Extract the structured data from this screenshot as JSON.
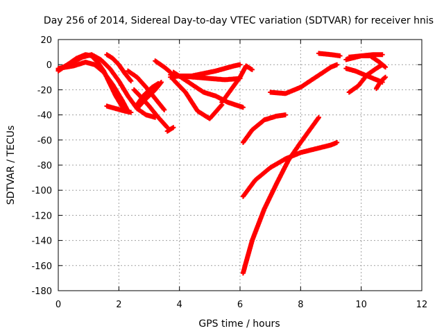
{
  "chart_data": {
    "type": "scatter",
    "title": "Day 256 of 2014, Sidereal Day-to-day VTEC variation (SDTVAR) for receiver hnis",
    "xlabel": "GPS time / hours",
    "ylabel": "SDTVAR / TECUs",
    "xlim": [
      0,
      12
    ],
    "ylim": [
      -180,
      20
    ],
    "xticks": [
      0,
      2,
      4,
      6,
      8,
      10,
      12
    ],
    "yticks": [
      -180,
      -160,
      -140,
      -120,
      -100,
      -80,
      -60,
      -40,
      -20,
      0,
      20
    ],
    "grid": true,
    "marker": "plus",
    "color": "#ff0000",
    "series": [
      {
        "x": [
          0.0,
          0.3,
          0.6,
          0.9,
          1.1,
          1.3,
          1.5,
          1.7,
          1.9,
          2.1,
          2.2
        ],
        "y": [
          -5,
          0,
          5,
          8,
          7,
          2,
          -5,
          -15,
          -25,
          -33,
          -36
        ]
      },
      {
        "x": [
          0.0,
          0.4,
          0.8,
          1.1,
          1.4,
          1.7,
          2.0,
          2.3,
          2.6,
          2.9,
          3.2
        ],
        "y": [
          -4,
          1,
          6,
          8,
          4,
          -3,
          -13,
          -25,
          -35,
          -40,
          -42
        ]
      },
      {
        "x": [
          0.0,
          0.5,
          0.9,
          1.2,
          1.5,
          1.8,
          2.1,
          2.3
        ],
        "y": [
          -3,
          -1,
          2,
          0,
          -6,
          -16,
          -28,
          -37
        ]
      },
      {
        "x": [
          1.6,
          1.8,
          2.0,
          2.2,
          2.4
        ],
        "y": [
          8,
          5,
          0,
          -7,
          -13
        ]
      },
      {
        "x": [
          1.6,
          1.9,
          2.2,
          2.4
        ],
        "y": [
          -33,
          -35,
          -37,
          -38
        ]
      },
      {
        "x": [
          2.3,
          2.6,
          2.9,
          3.2,
          3.5
        ],
        "y": [
          -5,
          -10,
          -18,
          -27,
          -36
        ]
      },
      {
        "x": [
          2.5,
          2.7,
          3.0,
          3.3,
          3.6
        ],
        "y": [
          -20,
          -25,
          -33,
          -42,
          -50
        ]
      },
      {
        "x": [
          2.6,
          2.9,
          3.2,
          3.4
        ],
        "y": [
          -35,
          -27,
          -20,
          -14
        ]
      },
      {
        "x": [
          2.6,
          2.8,
          3.1,
          3.3
        ],
        "y": [
          -32,
          -25,
          -18,
          -15
        ]
      },
      {
        "x": [
          3.6,
          3.8
        ],
        "y": [
          -53,
          -50
        ]
      },
      {
        "x": [
          3.2,
          3.5,
          3.7
        ],
        "y": [
          3,
          -2,
          -6
        ]
      },
      {
        "x": [
          3.7,
          4.0,
          4.4,
          4.8,
          5.2,
          5.5,
          5.8,
          6.0
        ],
        "y": [
          -8,
          -9,
          -9,
          -7,
          -5,
          -3,
          -1,
          0
        ]
      },
      {
        "x": [
          3.7,
          4.0,
          4.5,
          5.0,
          5.5,
          6.0
        ],
        "y": [
          -10,
          -9,
          -10,
          -11,
          -12,
          -11
        ]
      },
      {
        "x": [
          3.8,
          4.2,
          4.6,
          5.0,
          5.4
        ],
        "y": [
          -12,
          -22,
          -37,
          -43,
          -32
        ]
      },
      {
        "x": [
          3.8,
          4.3,
          4.8,
          5.2,
          5.6,
          6.1
        ],
        "y": [
          -6,
          -14,
          -22,
          -25,
          -30,
          -34
        ]
      },
      {
        "x": [
          5.4,
          5.7,
          6.0,
          6.2,
          6.4
        ],
        "y": [
          -30,
          -20,
          -10,
          -1,
          -4
        ]
      },
      {
        "x": [
          6.1,
          6.4,
          6.8,
          7.2,
          7.5
        ],
        "y": [
          -62,
          -52,
          -44,
          -41,
          -40
        ]
      },
      {
        "x": [
          6.1,
          6.5,
          7.0,
          7.5,
          8.0,
          8.5,
          9.0,
          9.2
        ],
        "y": [
          -105,
          -92,
          -82,
          -75,
          -70,
          -67,
          -64,
          -62
        ]
      },
      {
        "x": [
          6.1,
          6.4,
          6.8,
          7.2,
          7.6,
          8.0,
          8.3,
          8.6
        ],
        "y": [
          -166,
          -140,
          -115,
          -95,
          -76,
          -62,
          -52,
          -42
        ]
      },
      {
        "x": [
          7.0,
          7.5,
          8.0,
          8.5,
          9.0,
          9.2
        ],
        "y": [
          -22,
          -23,
          -18,
          -10,
          -2,
          0
        ]
      },
      {
        "x": [
          8.6,
          9.0,
          9.3
        ],
        "y": [
          9,
          8,
          7
        ]
      },
      {
        "x": [
          9.6,
          9.9,
          10.2,
          10.5,
          10.7
        ],
        "y": [
          -22,
          -17,
          -8,
          -3,
          0
        ]
      },
      {
        "x": [
          9.5,
          9.8,
          10.1,
          10.4,
          10.7
        ],
        "y": [
          -3,
          -5,
          -8,
          -11,
          -14
        ]
      },
      {
        "x": [
          9.5,
          10.0,
          10.3,
          10.6,
          10.8
        ],
        "y": [
          4,
          7,
          7,
          2,
          -2
        ]
      },
      {
        "x": [
          9.6,
          10.0,
          10.4,
          10.7
        ],
        "y": [
          6,
          7,
          8,
          8
        ]
      },
      {
        "x": [
          10.5,
          10.6,
          10.7,
          10.8
        ],
        "y": [
          -19,
          -15,
          -12,
          -10
        ]
      }
    ]
  }
}
